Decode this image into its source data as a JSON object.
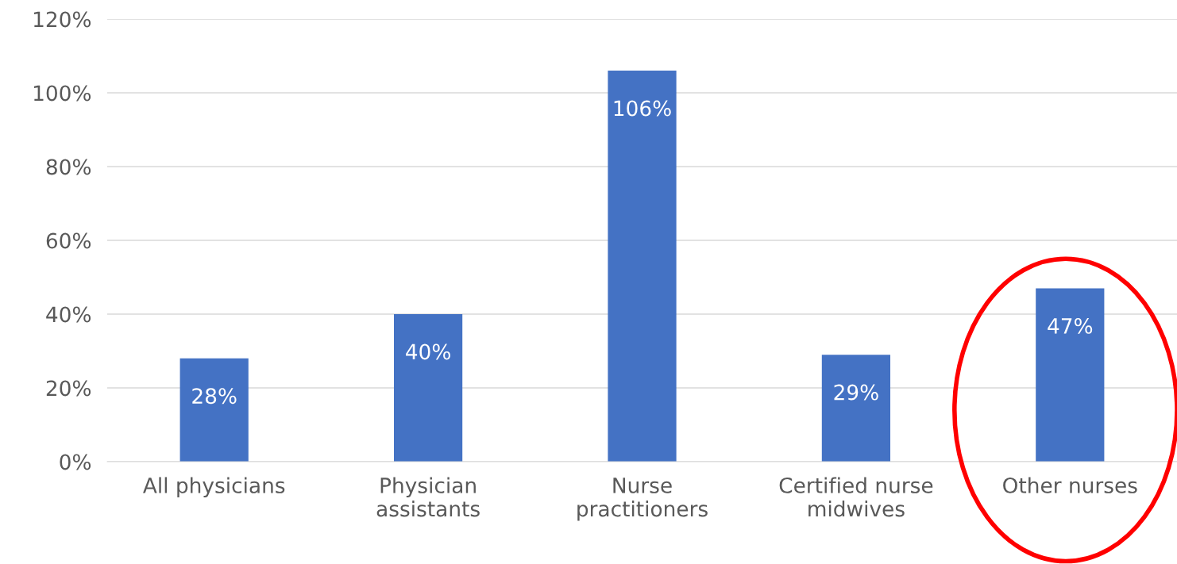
{
  "chart_data": {
    "type": "bar",
    "categories": [
      "All physicians",
      "Physician\nassistants",
      "Nurse\npractitioners",
      "Certified nurse\nmidwives",
      "Other nurses"
    ],
    "values": [
      28,
      40,
      106,
      29,
      47
    ],
    "value_labels": [
      "28%",
      "40%",
      "106%",
      "29%",
      "47%"
    ],
    "color": "#4472c4",
    "ylim": [
      0,
      120
    ],
    "yticks": [
      {
        "value": 0,
        "label": "0%"
      },
      {
        "value": 20,
        "label": "20%"
      },
      {
        "value": 40,
        "label": "40%"
      },
      {
        "value": 60,
        "label": "60%"
      },
      {
        "value": 80,
        "label": "80%"
      },
      {
        "value": 100,
        "label": "100%"
      },
      {
        "value": 120,
        "label": "120%"
      }
    ],
    "grid": "y",
    "legend": false
  }
}
